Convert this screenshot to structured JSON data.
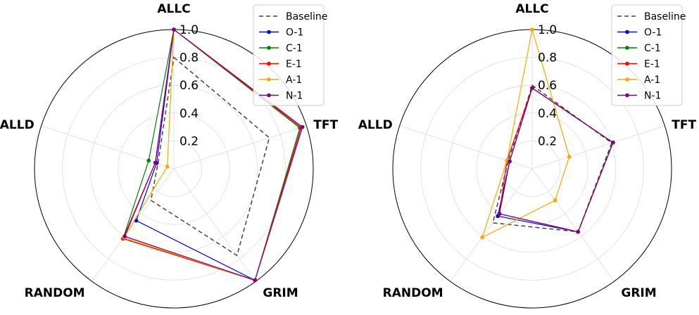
{
  "chart_data": [
    {
      "type": "radar",
      "axes": [
        "ALLC",
        "TFT",
        "GRIM",
        "RANDOM",
        "ALLD"
      ],
      "rlim": [
        0,
        1.0
      ],
      "rticks": [
        "0.2",
        "0.4",
        "0.6",
        "0.8",
        "1.0"
      ],
      "grid": true,
      "legend_position": "top-right",
      "series": [
        {
          "name": "Baseline",
          "color": "#444444",
          "dashed": true,
          "markers": false,
          "values": [
            0.8,
            0.72,
            0.77,
            0.28,
            0.12
          ]
        },
        {
          "name": "O-1",
          "color": "#0000ff",
          "dashed": false,
          "markers": true,
          "values": [
            1.0,
            0.96,
            0.99,
            0.46,
            0.13
          ]
        },
        {
          "name": "C-1",
          "color": "#008000",
          "dashed": false,
          "markers": true,
          "values": [
            1.0,
            0.95,
            0.99,
            0.62,
            0.19
          ]
        },
        {
          "name": "E-1",
          "color": "#ff0000",
          "dashed": false,
          "markers": true,
          "values": [
            1.0,
            0.96,
            0.99,
            0.62,
            0.14
          ]
        },
        {
          "name": "A-1",
          "color": "#ffa500",
          "dashed": false,
          "markers": true,
          "values": [
            1.0,
            0.97,
            0.99,
            0.61,
            0.05
          ]
        },
        {
          "name": "N-1",
          "color": "#800080",
          "dashed": false,
          "markers": true,
          "values": [
            1.0,
            0.97,
            0.99,
            0.6,
            0.14
          ]
        }
      ]
    },
    {
      "type": "radar",
      "axes": [
        "ALLC",
        "TFT",
        "GRIM",
        "RANDOM",
        "ALLD"
      ],
      "rlim": [
        0,
        1.0
      ],
      "rticks": [
        "0.2",
        "0.4",
        "0.6",
        "0.8",
        "1.0"
      ],
      "grid": true,
      "legend_position": "top-right",
      "series": [
        {
          "name": "Baseline",
          "color": "#444444",
          "dashed": true,
          "markers": false,
          "values": [
            0.6,
            0.6,
            0.56,
            0.48,
            0.18
          ]
        },
        {
          "name": "O-1",
          "color": "#0000ff",
          "dashed": false,
          "markers": true,
          "values": [
            0.58,
            0.61,
            0.56,
            0.42,
            0.17
          ]
        },
        {
          "name": "C-1",
          "color": "#008000",
          "dashed": false,
          "markers": true,
          "values": [
            0.58,
            0.61,
            0.56,
            0.4,
            0.17
          ]
        },
        {
          "name": "E-1",
          "color": "#ff0000",
          "dashed": false,
          "markers": true,
          "values": [
            0.58,
            0.61,
            0.56,
            0.4,
            0.19
          ]
        },
        {
          "name": "A-1",
          "color": "#ffa500",
          "dashed": false,
          "markers": true,
          "values": [
            1.0,
            0.28,
            0.28,
            0.61,
            0.19
          ]
        },
        {
          "name": "N-1",
          "color": "#800080",
          "dashed": false,
          "markers": true,
          "values": [
            0.58,
            0.61,
            0.56,
            0.4,
            0.17
          ]
        }
      ]
    }
  ]
}
